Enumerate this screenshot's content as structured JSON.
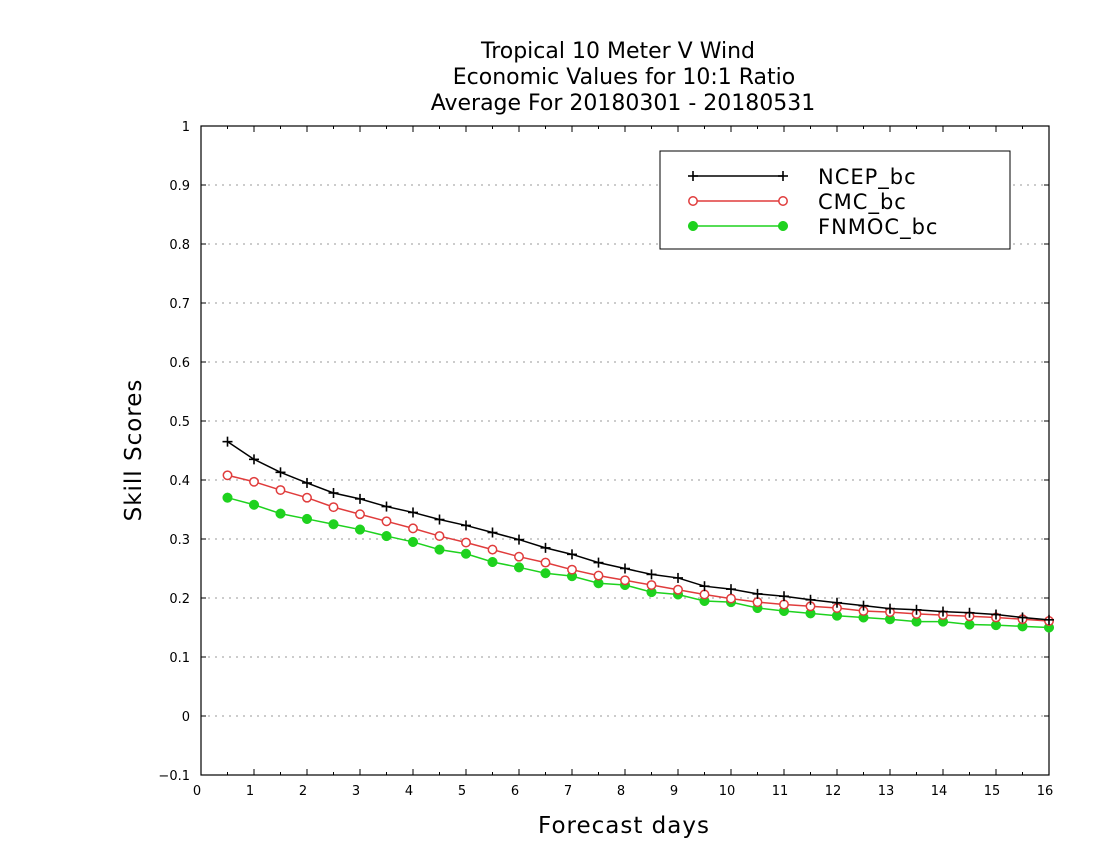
{
  "chart_data": {
    "type": "line",
    "title_lines": [
      "Tropical 10 Meter V Wind",
      "Economic Values for 10:1 Ratio",
      "Average For 20180301 - 20180531"
    ],
    "xlabel": "Forecast days",
    "ylabel": "Skill Scores",
    "xlim": [
      0,
      16
    ],
    "ylim": [
      -0.1,
      1
    ],
    "x_ticks": [
      "0",
      "1",
      "2",
      "3",
      "4",
      "5",
      "6",
      "7",
      "8",
      "9",
      "10",
      "11",
      "12",
      "13",
      "14",
      "15",
      "16"
    ],
    "y_ticks": [
      "−0.1",
      "0",
      "0.1",
      "0.2",
      "0.3",
      "0.4",
      "0.5",
      "0.6",
      "0.7",
      "0.8",
      "0.9",
      "1"
    ],
    "grid": "horizontal dotted",
    "legend_position": "top-right",
    "x": [
      0.5,
      1,
      1.5,
      2,
      2.5,
      3,
      3.5,
      4,
      4.5,
      5,
      5.5,
      6,
      6.5,
      7,
      7.5,
      8,
      8.5,
      9,
      9.5,
      10,
      10.5,
      11,
      11.5,
      12,
      12.5,
      13,
      13.5,
      14,
      14.5,
      15,
      15.5,
      16
    ],
    "series": [
      {
        "name": "NCEP_bc",
        "color": "#000000",
        "marker": "plus",
        "values": [
          0.465,
          0.435,
          0.413,
          0.395,
          0.378,
          0.368,
          0.355,
          0.345,
          0.333,
          0.323,
          0.311,
          0.299,
          0.285,
          0.274,
          0.26,
          0.25,
          0.24,
          0.234,
          0.22,
          0.215,
          0.207,
          0.203,
          0.197,
          0.192,
          0.187,
          0.182,
          0.18,
          0.177,
          0.175,
          0.172,
          0.167,
          0.163
        ]
      },
      {
        "name": "CMC_bc",
        "color": "#e03c3c",
        "marker": "open-circle",
        "values": [
          0.408,
          0.397,
          0.383,
          0.37,
          0.354,
          0.342,
          0.33,
          0.318,
          0.305,
          0.294,
          0.282,
          0.27,
          0.26,
          0.248,
          0.238,
          0.23,
          0.222,
          0.214,
          0.206,
          0.199,
          0.193,
          0.189,
          0.186,
          0.183,
          0.178,
          0.176,
          0.173,
          0.171,
          0.169,
          0.167,
          0.164,
          0.161
        ]
      },
      {
        "name": "FNMOC_bc",
        "color": "#1ed21e",
        "marker": "filled-circle",
        "values": [
          0.37,
          0.358,
          0.343,
          0.334,
          0.325,
          0.316,
          0.305,
          0.295,
          0.282,
          0.275,
          0.261,
          0.252,
          0.242,
          0.237,
          0.225,
          0.222,
          0.21,
          0.206,
          0.195,
          0.193,
          0.183,
          0.178,
          0.174,
          0.17,
          0.167,
          0.164,
          0.16,
          0.16,
          0.155,
          0.154,
          0.152,
          0.15
        ]
      }
    ]
  }
}
